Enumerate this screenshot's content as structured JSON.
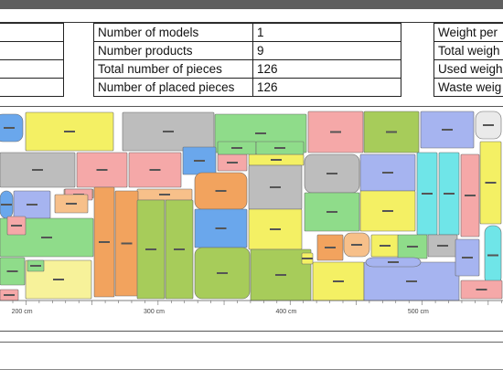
{
  "stats_middle": {
    "rows": [
      {
        "label": "Number of models",
        "value": "1"
      },
      {
        "label": "Number products",
        "value": "9"
      },
      {
        "label": "Total number of pieces",
        "value": "126"
      },
      {
        "label": "Number of placed pieces",
        "value": "126"
      }
    ]
  },
  "stats_right": {
    "labels": [
      "Weight per",
      "Total weigh",
      "Used weigh",
      "Waste weig"
    ]
  },
  "ruler": {
    "ticks": [
      {
        "cm": 200,
        "label": "200 cm"
      },
      {
        "cm": 300,
        "label": "300 cm"
      },
      {
        "cm": 400,
        "label": "400 cm"
      },
      {
        "cm": 500,
        "label": "500 cm"
      }
    ]
  },
  "colors": {
    "yellow": "#f4f064",
    "pink": "#f5a8a8",
    "gray": "#bdbdbd",
    "green": "#8fdc8a",
    "olive": "#a7cc5a",
    "cyan": "#6fe5e8",
    "orange": "#f2a35e",
    "blue": "#6aa7ec",
    "lavender": "#a6b4f0",
    "peach": "#f7c08a",
    "lightyellow": "#f7f29a",
    "light": "#eaeaea"
  },
  "pieces": [
    {
      "c": "blue"
    },
    {
      "c": "yellow"
    },
    {
      "c": "gray"
    },
    {
      "c": "green"
    },
    {
      "c": "pink"
    },
    {
      "c": "olive"
    },
    {
      "c": "lavender"
    },
    {
      "c": "light"
    },
    {
      "c": "gray"
    },
    {
      "c": "pink"
    },
    {
      "c": "pink"
    },
    {
      "c": "blue"
    },
    {
      "c": "pink"
    },
    {
      "c": "yellow"
    },
    {
      "c": "gray"
    },
    {
      "c": "lavender"
    },
    {
      "c": "cyan"
    },
    {
      "c": "cyan"
    },
    {
      "c": "pink"
    },
    {
      "c": "yellow"
    },
    {
      "c": "lavender"
    },
    {
      "c": "blue"
    },
    {
      "c": "peach"
    },
    {
      "c": "peach"
    },
    {
      "c": "orange"
    },
    {
      "c": "orange"
    },
    {
      "c": "olive"
    },
    {
      "c": "olive"
    },
    {
      "c": "orange"
    },
    {
      "c": "blue"
    },
    {
      "c": "gray"
    },
    {
      "c": "green"
    },
    {
      "c": "yellow"
    },
    {
      "c": "yellow"
    },
    {
      "c": "blue"
    },
    {
      "c": "olive"
    },
    {
      "c": "olive"
    },
    {
      "c": "yellow"
    },
    {
      "c": "lavender"
    },
    {
      "c": "green"
    },
    {
      "c": "lightyellow"
    },
    {
      "c": "green"
    },
    {
      "c": "peach"
    },
    {
      "c": "yellow"
    },
    {
      "c": "gray"
    },
    {
      "c": "green"
    },
    {
      "c": "pink"
    },
    {
      "c": "orange"
    },
    {
      "c": "lavender"
    },
    {
      "c": "cyan"
    },
    {
      "c": "pink"
    },
    {
      "c": "green"
    },
    {
      "c": "green"
    },
    {
      "c": "pink"
    },
    {
      "c": "peach"
    },
    {
      "c": "pink"
    },
    {
      "c": "lavender"
    },
    {
      "c": "yellow"
    },
    {
      "c": "green"
    }
  ]
}
